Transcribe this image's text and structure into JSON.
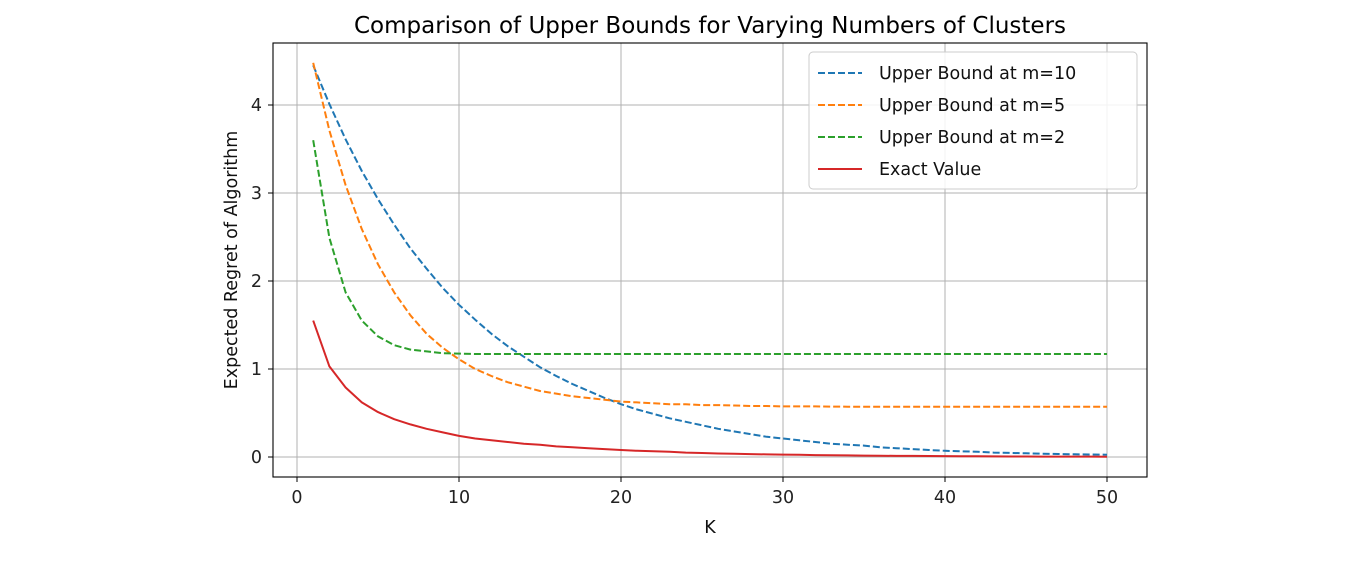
{
  "chart_data": {
    "type": "line",
    "title": "Comparison of Upper Bounds for Varying Numbers of Clusters",
    "xlabel": "K",
    "ylabel": "Expected Regret of Algorithm",
    "xlim": [
      -1.45,
      52.45
    ],
    "ylim": [
      -0.22,
      4.7
    ],
    "xticks": [
      0,
      10,
      20,
      30,
      40,
      50
    ],
    "yticks": [
      0,
      1,
      2,
      3,
      4
    ],
    "grid": true,
    "legend_position": "upper right",
    "x": [
      1,
      2,
      3,
      4,
      5,
      6,
      7,
      8,
      9,
      10,
      11,
      12,
      13,
      14,
      15,
      16,
      17,
      18,
      19,
      20,
      21,
      22,
      23,
      24,
      25,
      26,
      27,
      28,
      29,
      30,
      31,
      32,
      33,
      34,
      35,
      36,
      37,
      38,
      39,
      40,
      41,
      42,
      43,
      44,
      45,
      46,
      47,
      48,
      49,
      50
    ],
    "series": [
      {
        "name": "Upper Bound at m=10",
        "color": "#1f77b4",
        "style": "dashed",
        "values": [
          4.45,
          4.01,
          3.61,
          3.25,
          2.93,
          2.64,
          2.37,
          2.14,
          1.92,
          1.73,
          1.56,
          1.4,
          1.26,
          1.14,
          1.02,
          0.92,
          0.83,
          0.75,
          0.67,
          0.6,
          0.54,
          0.49,
          0.44,
          0.4,
          0.36,
          0.32,
          0.29,
          0.26,
          0.23,
          0.21,
          0.19,
          0.17,
          0.15,
          0.14,
          0.13,
          0.11,
          0.1,
          0.09,
          0.08,
          0.07,
          0.065,
          0.06,
          0.05,
          0.047,
          0.042,
          0.038,
          0.034,
          0.031,
          0.028,
          0.026
        ]
      },
      {
        "name": "Upper Bound at m=5",
        "color": "#ff7f0e",
        "style": "dashed",
        "values": [
          4.48,
          3.71,
          3.09,
          2.59,
          2.19,
          1.87,
          1.61,
          1.4,
          1.24,
          1.11,
          1.0,
          0.92,
          0.85,
          0.8,
          0.75,
          0.72,
          0.69,
          0.67,
          0.65,
          0.63,
          0.62,
          0.61,
          0.6,
          0.6,
          0.59,
          0.59,
          0.585,
          0.58,
          0.58,
          0.575,
          0.575,
          0.575,
          0.573,
          0.572,
          0.572,
          0.571,
          0.571,
          0.571,
          0.57,
          0.57,
          0.57,
          0.57,
          0.57,
          0.57,
          0.57,
          0.57,
          0.57,
          0.57,
          0.57,
          0.57
        ]
      },
      {
        "name": "Upper Bound at m=2",
        "color": "#2ca02c",
        "style": "dashed",
        "values": [
          3.6,
          2.49,
          1.87,
          1.55,
          1.37,
          1.27,
          1.22,
          1.2,
          1.18,
          1.175,
          1.17,
          1.17,
          1.17,
          1.17,
          1.17,
          1.17,
          1.17,
          1.17,
          1.17,
          1.17,
          1.17,
          1.17,
          1.17,
          1.17,
          1.17,
          1.17,
          1.17,
          1.17,
          1.17,
          1.17,
          1.17,
          1.17,
          1.17,
          1.17,
          1.17,
          1.17,
          1.17,
          1.17,
          1.17,
          1.17,
          1.17,
          1.17,
          1.17,
          1.17,
          1.17,
          1.17,
          1.17,
          1.17,
          1.17,
          1.17
        ]
      },
      {
        "name": "Exact Value",
        "color": "#d62728",
        "style": "solid",
        "values": [
          1.55,
          1.03,
          0.79,
          0.62,
          0.51,
          0.43,
          0.37,
          0.32,
          0.28,
          0.24,
          0.21,
          0.19,
          0.17,
          0.15,
          0.14,
          0.12,
          0.11,
          0.1,
          0.09,
          0.08,
          0.07,
          0.065,
          0.06,
          0.05,
          0.045,
          0.04,
          0.037,
          0.033,
          0.03,
          0.027,
          0.025,
          0.022,
          0.02,
          0.018,
          0.016,
          0.015,
          0.013,
          0.012,
          0.011,
          0.01,
          0.009,
          0.008,
          0.007,
          0.006,
          0.006,
          0.005,
          0.005,
          0.004,
          0.004,
          0.003
        ]
      }
    ]
  },
  "colors": {
    "grid": "#b0b0b0",
    "axes": "#000000",
    "legend_border": "#cccccc"
  }
}
